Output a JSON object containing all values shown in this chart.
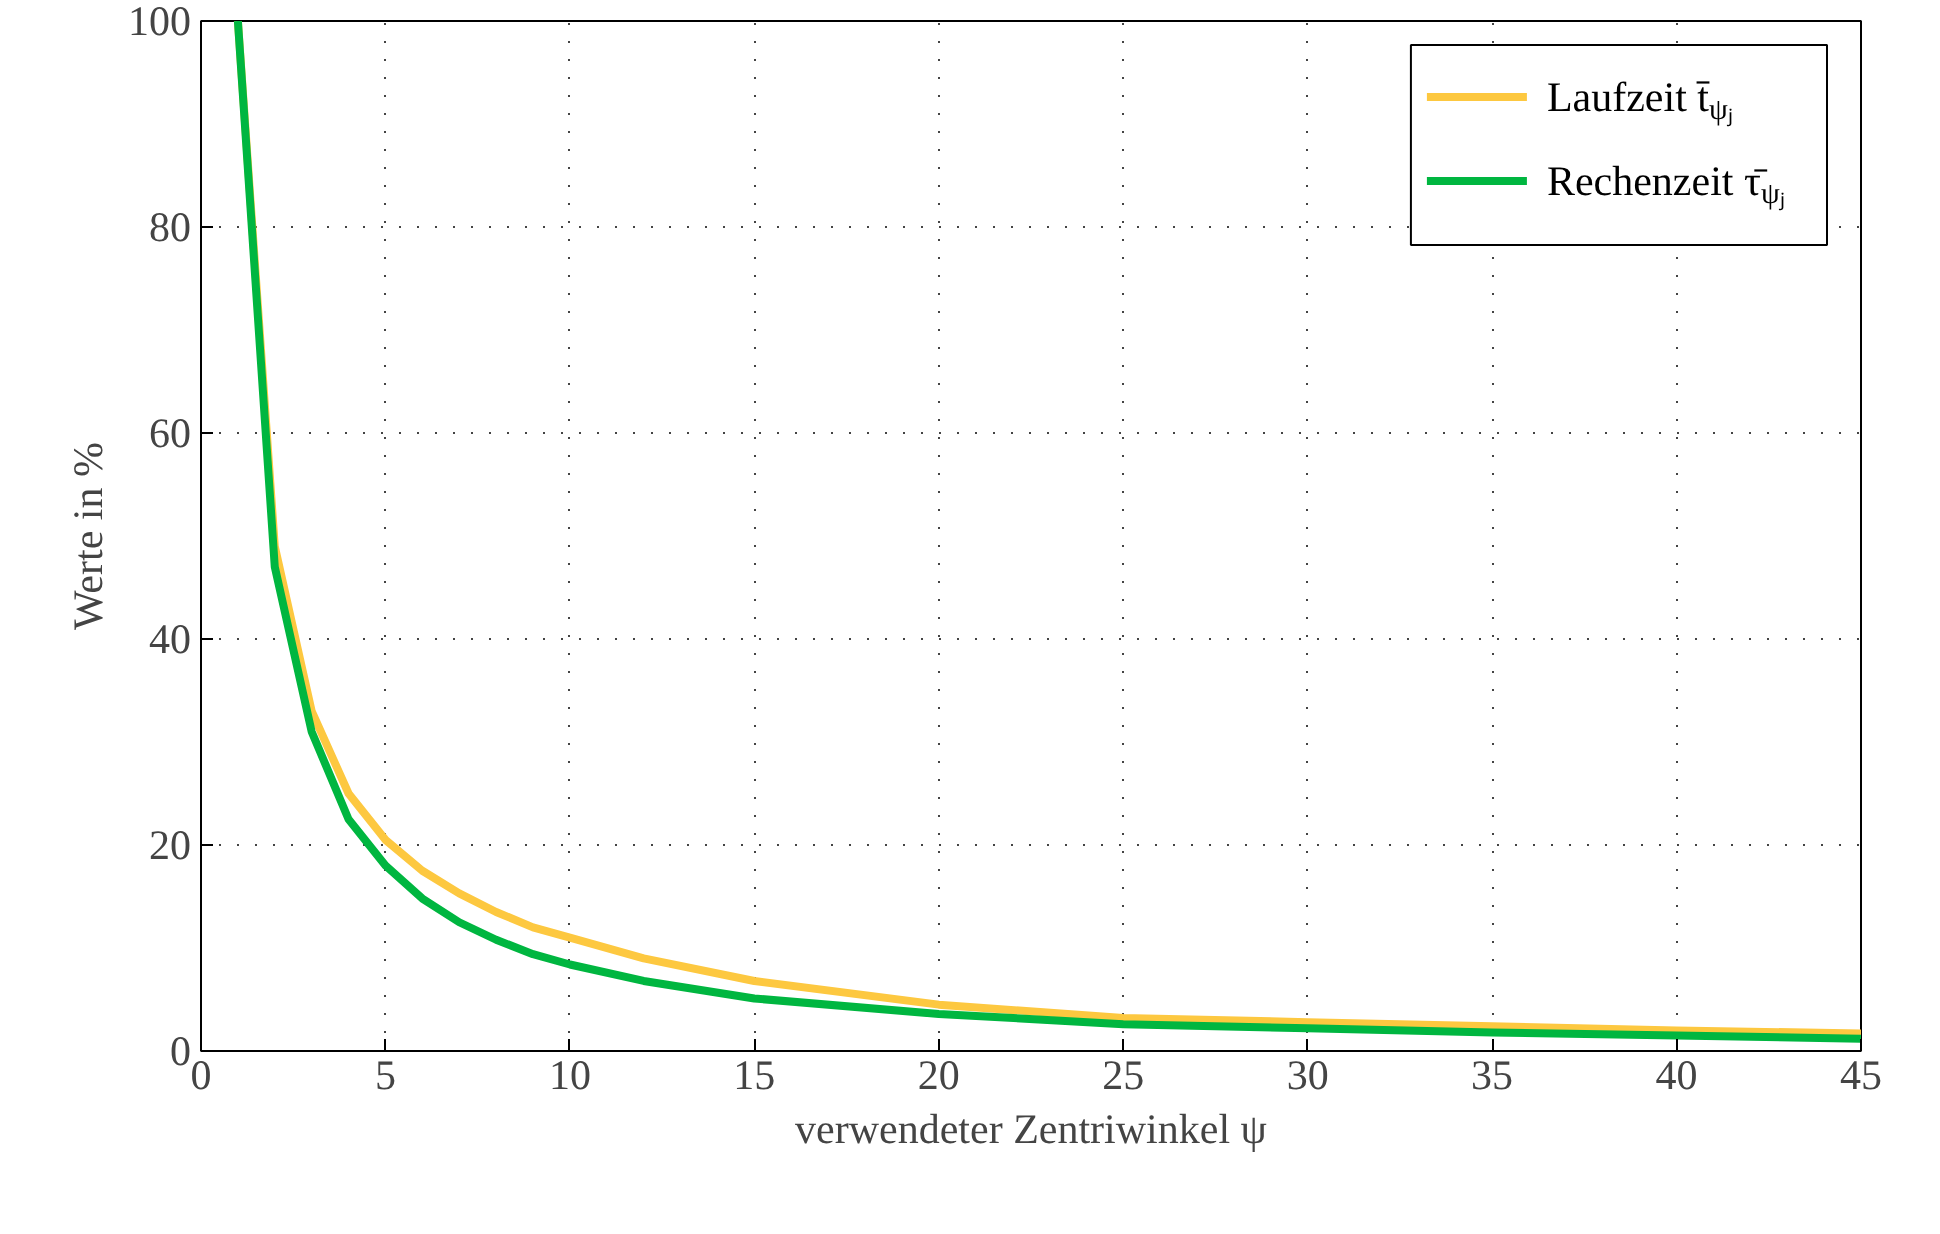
{
  "chart_data": {
    "type": "line",
    "xlabel": "verwendeter Zentriwinkel ψ",
    "ylabel": "Werte in %",
    "x": [
      1,
      2,
      3,
      4,
      5,
      6,
      7,
      8,
      9,
      10,
      12,
      15,
      20,
      25,
      30,
      35,
      40,
      45
    ],
    "series": [
      {
        "name": "Laufzeit t̄$_{ψⱼ}$",
        "color": "#fdc840",
        "values": [
          100,
          49,
          33,
          25,
          20.5,
          17.5,
          15.3,
          13.5,
          12,
          11,
          9,
          6.8,
          4.5,
          3.2,
          2.8,
          2.4,
          2.0,
          1.7
        ]
      },
      {
        "name": "Rechenzeit τ̄$_{ψⱼ}$",
        "color": "#00b640",
        "values": [
          100,
          47,
          31,
          22.5,
          18,
          14.8,
          12.5,
          10.8,
          9.4,
          8.4,
          6.8,
          5.1,
          3.6,
          2.6,
          2.2,
          1.8,
          1.5,
          1.2
        ]
      }
    ],
    "xlim": [
      0,
      45
    ],
    "ylim": [
      0,
      100
    ],
    "xticks": [
      0,
      5,
      10,
      15,
      20,
      25,
      30,
      35,
      40,
      45
    ],
    "yticks": [
      0,
      20,
      40,
      60,
      80,
      100
    ],
    "grid": true,
    "legend": "top right",
    "line_style": "solid",
    "marker": "none"
  }
}
